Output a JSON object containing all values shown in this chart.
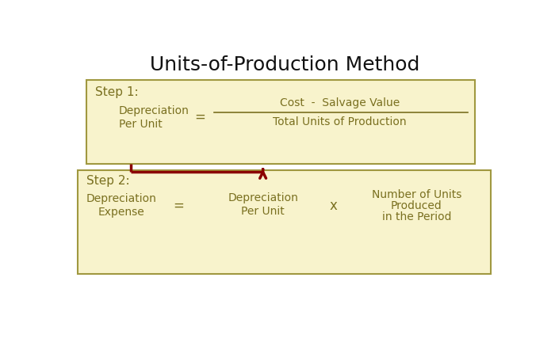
{
  "title": "Units-of-Production Method",
  "title_fontsize": 18,
  "title_color": "#111111",
  "background_color": "#ffffff",
  "box_fill_color": "#f8f3cc",
  "box_edge_color": "#a09840",
  "text_color": "#7a7020",
  "step1_label": "Step 1:",
  "step1_left_line1": "Depreciation",
  "step1_left_line2": "Per Unit",
  "step1_equals": "=",
  "step1_numerator": "Cost  -  Salvage Value",
  "step1_denominator": "Total Units of Production",
  "step2_label": "Step 2:",
  "step2_left_line1": "Depreciation",
  "step2_left_line2": "Expense",
  "step2_equals": "=",
  "step2_middle_line1": "Depreciation",
  "step2_middle_line2": "Per Unit",
  "step2_times": "x",
  "step2_right_line1": "Number of Units",
  "step2_right_line2": "Produced",
  "step2_right_line3": "in the Period",
  "arrow_color": "#8b0000",
  "label_fontsize": 11,
  "content_fontsize": 10
}
